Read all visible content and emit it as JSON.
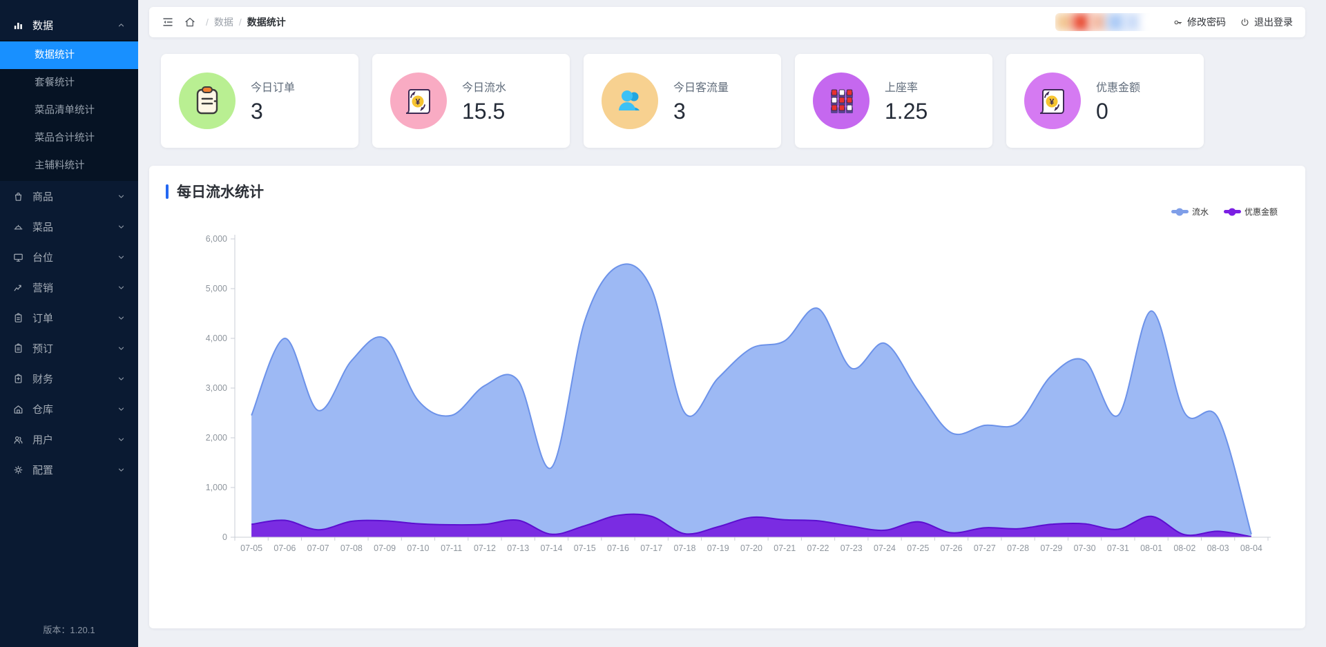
{
  "sidebar": {
    "version_label": "版本：1.20.1",
    "menu": [
      {
        "label": "数据",
        "icon": "bar-chart",
        "expanded": true,
        "active": true,
        "children": [
          {
            "label": "数据统计",
            "active": true
          },
          {
            "label": "套餐统计",
            "active": false
          },
          {
            "label": "菜品清单统计",
            "active": false
          },
          {
            "label": "菜品合计统计",
            "active": false
          },
          {
            "label": "主辅料统计",
            "active": false
          }
        ]
      },
      {
        "label": "商品",
        "icon": "bag"
      },
      {
        "label": "菜品",
        "icon": "dish"
      },
      {
        "label": "台位",
        "icon": "monitor"
      },
      {
        "label": "营销",
        "icon": "trend"
      },
      {
        "label": "订单",
        "icon": "clipboard"
      },
      {
        "label": "预订",
        "icon": "clipboard"
      },
      {
        "label": "财务",
        "icon": "wallet"
      },
      {
        "label": "仓库",
        "icon": "warehouse"
      },
      {
        "label": "用户",
        "icon": "users"
      },
      {
        "label": "配置",
        "icon": "gear"
      }
    ]
  },
  "header": {
    "breadcrumb": [
      "数据",
      "数据统计"
    ],
    "actions": [
      {
        "label": "修改密码",
        "icon": "key"
      },
      {
        "label": "退出登录",
        "icon": "power"
      }
    ]
  },
  "stats": [
    {
      "label": "今日订单",
      "value": "3",
      "icon": "clipboard-pad",
      "circle_color": "#b9ef92"
    },
    {
      "label": "今日流水",
      "value": "15.5",
      "icon": "receipt-yen",
      "circle_color": "#f9abc3"
    },
    {
      "label": "今日客流量",
      "value": "3",
      "icon": "people",
      "circle_color": "#f7d190"
    },
    {
      "label": "上座率",
      "value": "1.25",
      "icon": "seats",
      "circle_color": "#c568ef"
    },
    {
      "label": "优惠金额",
      "value": "0",
      "icon": "receipt-yen",
      "circle_color": "#d57af2"
    }
  ],
  "chart": {
    "title": "每日流水统计"
  },
  "chart_data": {
    "type": "area",
    "title": "每日流水统计",
    "xlabel": "",
    "ylabel": "",
    "ylim": [
      0,
      6000
    ],
    "y_ticks": [
      "0",
      "1,000",
      "2,000",
      "3,000",
      "4,000",
      "5,000",
      "6,000"
    ],
    "grid": false,
    "legend_position": "top-right",
    "smooth": true,
    "categories": [
      "07-05",
      "07-06",
      "07-07",
      "07-08",
      "07-09",
      "07-10",
      "07-11",
      "07-12",
      "07-13",
      "07-14",
      "07-15",
      "07-16",
      "07-17",
      "07-18",
      "07-19",
      "07-20",
      "07-21",
      "07-22",
      "07-23",
      "07-24",
      "07-25",
      "07-26",
      "07-27",
      "07-28",
      "07-29",
      "07-30",
      "07-31",
      "08-01",
      "08-02",
      "08-03",
      "08-04"
    ],
    "series": [
      {
        "name": "流水",
        "legend_color": "#7f9ee8",
        "fill": "#9db9f4",
        "stroke": "#6c92e9",
        "values": [
          2450,
          4000,
          2550,
          3550,
          4000,
          2750,
          2450,
          3050,
          3150,
          1400,
          4350,
          5450,
          5000,
          2500,
          3200,
          3800,
          3950,
          4600,
          3400,
          3900,
          2950,
          2100,
          2250,
          2300,
          3250,
          3550,
          2450,
          4550,
          2500,
          2400,
          60
        ]
      },
      {
        "name": "优惠金额",
        "legend_color": "#7b1fe3",
        "fill": "#7a2ce2",
        "stroke": "#5c0fd0",
        "values": [
          260,
          340,
          150,
          320,
          330,
          270,
          250,
          260,
          340,
          60,
          230,
          440,
          420,
          70,
          210,
          400,
          350,
          330,
          220,
          140,
          310,
          90,
          190,
          170,
          260,
          270,
          160,
          420,
          50,
          120,
          10
        ]
      }
    ],
    "axis_color": "#c9ced4",
    "tick_label_color": "#8e959d"
  }
}
